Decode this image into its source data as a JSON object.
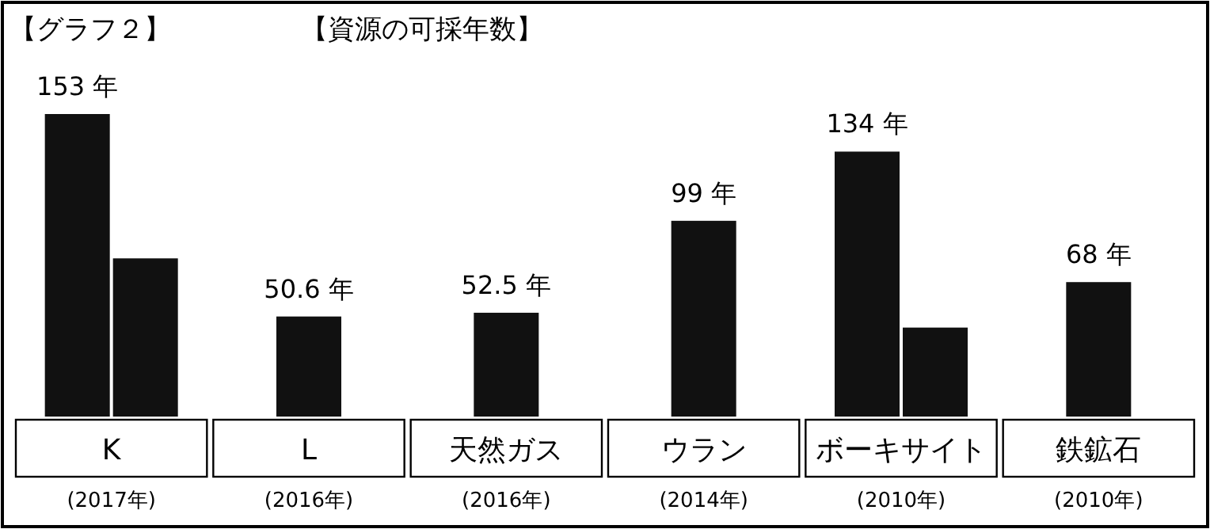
{
  "chart_data": {
    "type": "bar",
    "subtitle": "【グラフ２】",
    "title": "【資源の可採年数】",
    "categories": [
      "K\n(2017年)",
      "L\n(2016年)",
      "天然ガス\n(2016年)",
      "ウラン\n(2014年)",
      "ボーキサイト\n(2010年)",
      "鉄鉱石\n(2010年)"
    ],
    "series": [
      {
        "color": "#111111",
        "values": [
          153,
          50.6,
          52.5,
          99,
          134,
          68
        ],
        "value_labels": [
          "153 年",
          "50.6 年",
          "52.5 年",
          "99 年",
          "134 年",
          "68 年"
        ]
      },
      {
        "color": "#111111",
        "values": [
          80,
          null,
          null,
          null,
          45,
          null
        ]
      }
    ]
  }
}
